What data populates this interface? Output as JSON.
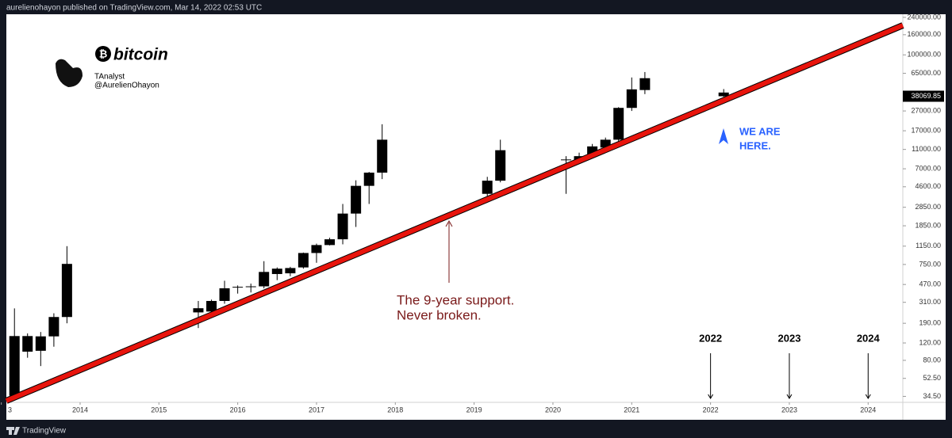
{
  "header": "aurelienohayon published on TradingView.com, Mar 14, 2022 02:53 UTC",
  "footer": "TradingView",
  "chart_data": {
    "type": "candlestick",
    "log_scale": true,
    "color": "#000000",
    "support_color": "#e8140c",
    "logo": "bitcoin",
    "author": "TAnalyst",
    "handle": "@AurelienOhayon",
    "annotations": {
      "support": [
        "The 9-year support.",
        "Never broken."
      ],
      "here": [
        "WE ARE",
        "HERE."
      ],
      "years": [
        "2022",
        "2023",
        "2024"
      ]
    },
    "x": [
      2013.167,
      2013.333,
      2013.5,
      2013.667,
      2013.833,
      2015.5,
      2015.667,
      2015.833,
      2016.0,
      2016.167,
      2016.333,
      2016.5,
      2016.667,
      2016.833,
      2017.0,
      2017.167,
      2017.333,
      2017.5,
      2017.667,
      2017.833,
      2019.167,
      2019.333,
      2020.167,
      2020.333,
      2020.5,
      2020.667,
      2020.833,
      2021.0,
      2021.167,
      2022.167
    ],
    "open": [
      35,
      98,
      100,
      140,
      220,
      245,
      250,
      320,
      440,
      445,
      450,
      600,
      610,
      700,
      980,
      1180,
      1350,
      2460,
      4700,
      6400,
      3900,
      5300,
      8600,
      8600,
      9500,
      11500,
      13800,
      29000,
      44000,
      41500
    ],
    "high": [
      269,
      150,
      155,
      240,
      1150,
      320,
      330,
      513,
      460,
      480,
      810,
      700,
      710,
      990,
      1220,
      1400,
      3080,
      5350,
      6500,
      19800,
      5800,
      13800,
      9400,
      10200,
      12500,
      14500,
      29500,
      59000,
      67000,
      45000
    ],
    "low": [
      34,
      85,
      70,
      110,
      190,
      170,
      240,
      300,
      380,
      390,
      430,
      520,
      570,
      680,
      780,
      1170,
      1200,
      1800,
      3080,
      5500,
      3700,
      5100,
      3900,
      8200,
      9000,
      10500,
      13000,
      27000,
      40000,
      37500
    ],
    "close": [
      141,
      141,
      140,
      220,
      760,
      270,
      320,
      430,
      445,
      450,
      630,
      680,
      690,
      980,
      1180,
      1350,
      2460,
      4700,
      6400,
      13800,
      5300,
      10800,
      8700,
      9400,
      11800,
      13800,
      29000,
      44700,
      58000,
      38069.85
    ],
    "xlim": [
      2013.064,
      2024.44
    ],
    "xticks": [
      {
        "value": 2013,
        "label": "3"
      },
      2014,
      2015,
      2016,
      2017,
      2018,
      2019,
      2020,
      2021,
      2022,
      2023,
      2024
    ],
    "ylim": [
      30,
      258000
    ],
    "yticks": [
      {
        "value": 240000,
        "label": "240000.00"
      },
      {
        "value": 160000,
        "label": "160000.00"
      },
      {
        "value": 100000,
        "label": "100000.00"
      },
      {
        "value": 65000,
        "label": "65000.00"
      },
      {
        "value": 27000,
        "label": "27000.00"
      },
      {
        "value": 17000,
        "label": "17000.00"
      },
      {
        "value": 11000,
        "label": "11000.00"
      },
      {
        "value": 7000,
        "label": "7000.00"
      },
      {
        "value": 4600,
        "label": "4600.00"
      },
      {
        "value": 2850,
        "label": "2850.00"
      },
      {
        "value": 1850,
        "label": "1850.00"
      },
      {
        "value": 1150,
        "label": "1150.00"
      },
      {
        "value": 750,
        "label": "750.00"
      },
      {
        "value": 470,
        "label": "470.00"
      },
      {
        "value": 310,
        "label": "310.00"
      },
      {
        "value": 190,
        "label": "190.00"
      },
      {
        "value": 120,
        "label": "120.00"
      },
      {
        "value": 80,
        "label": "80.00"
      },
      {
        "value": 52.5,
        "label": "52.50"
      },
      {
        "value": 34.5,
        "label": "34.50"
      }
    ]
  }
}
